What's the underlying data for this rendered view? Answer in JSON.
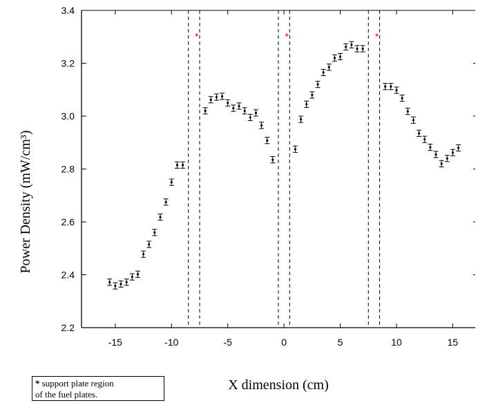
{
  "chart_data": {
    "type": "scatter",
    "xlabel": "X dimension (cm)",
    "ylabel": "Power Density (mW/cm³)",
    "xlim": [
      -18,
      17
    ],
    "ylim": [
      2.2,
      3.4
    ],
    "x_ticks": [
      -15,
      -10,
      -5,
      0,
      5,
      10,
      15
    ],
    "y_ticks": [
      2.2,
      2.4,
      2.6,
      2.8,
      3.0,
      3.2,
      3.4
    ],
    "x_tick_labels": [
      "-15",
      "-10",
      "-5",
      "0",
      "5",
      "10",
      "15"
    ],
    "y_tick_labels": [
      "2.2",
      "2.4",
      "2.6",
      "2.8",
      "3.0",
      "3.2",
      "3.4"
    ],
    "error_bar_halfwidth": 0.012,
    "points": [
      [
        -15.5,
        2.372
      ],
      [
        -15.0,
        2.358
      ],
      [
        -14.5,
        2.365
      ],
      [
        -14.0,
        2.372
      ],
      [
        -13.5,
        2.392
      ],
      [
        -13.0,
        2.402
      ],
      [
        -12.5,
        2.478
      ],
      [
        -12.0,
        2.515
      ],
      [
        -11.5,
        2.56
      ],
      [
        -11.0,
        2.618
      ],
      [
        -10.5,
        2.675
      ],
      [
        -10.0,
        2.75
      ],
      [
        -9.5,
        2.815
      ],
      [
        -9.0,
        2.815
      ],
      [
        -7.0,
        3.02
      ],
      [
        -6.5,
        3.062
      ],
      [
        -6.0,
        3.072
      ],
      [
        -5.5,
        3.075
      ],
      [
        -5.0,
        3.05
      ],
      [
        -4.5,
        3.03
      ],
      [
        -4.0,
        3.038
      ],
      [
        -3.5,
        3.02
      ],
      [
        -3.0,
        2.995
      ],
      [
        -2.5,
        3.012
      ],
      [
        -2.0,
        2.965
      ],
      [
        -1.5,
        2.908
      ],
      [
        -1.0,
        2.835
      ],
      [
        1.0,
        2.875
      ],
      [
        1.5,
        2.988
      ],
      [
        2.0,
        3.045
      ],
      [
        2.5,
        3.08
      ],
      [
        3.0,
        3.12
      ],
      [
        3.5,
        3.165
      ],
      [
        4.0,
        3.185
      ],
      [
        4.5,
        3.22
      ],
      [
        5.0,
        3.225
      ],
      [
        5.5,
        3.262
      ],
      [
        6.0,
        3.27
      ],
      [
        6.5,
        3.255
      ],
      [
        7.0,
        3.255
      ],
      [
        9.0,
        3.112
      ],
      [
        9.5,
        3.112
      ],
      [
        10.0,
        3.098
      ],
      [
        10.5,
        3.068
      ],
      [
        11.0,
        3.018
      ],
      [
        11.5,
        2.985
      ],
      [
        12.0,
        2.935
      ],
      [
        12.5,
        2.912
      ],
      [
        13.0,
        2.882
      ],
      [
        13.5,
        2.855
      ],
      [
        14.0,
        2.82
      ],
      [
        14.5,
        2.84
      ],
      [
        15.0,
        2.862
      ],
      [
        15.5,
        2.88
      ]
    ],
    "support_plate_boundaries": [
      -8.5,
      -7.5,
      -0.5,
      0.5,
      7.5,
      8.5
    ],
    "support_plate_markers": [
      {
        "x": -8.0,
        "y": 3.31,
        "text": "*"
      },
      {
        "x": 0.0,
        "y": 3.31,
        "text": "*"
      },
      {
        "x": 8.0,
        "y": 3.31,
        "text": "*"
      }
    ],
    "marker_color": "#ff0000",
    "grid": false
  },
  "note": {
    "star": "*",
    "line1": " support plate region",
    "line2": "of the fuel plates."
  }
}
